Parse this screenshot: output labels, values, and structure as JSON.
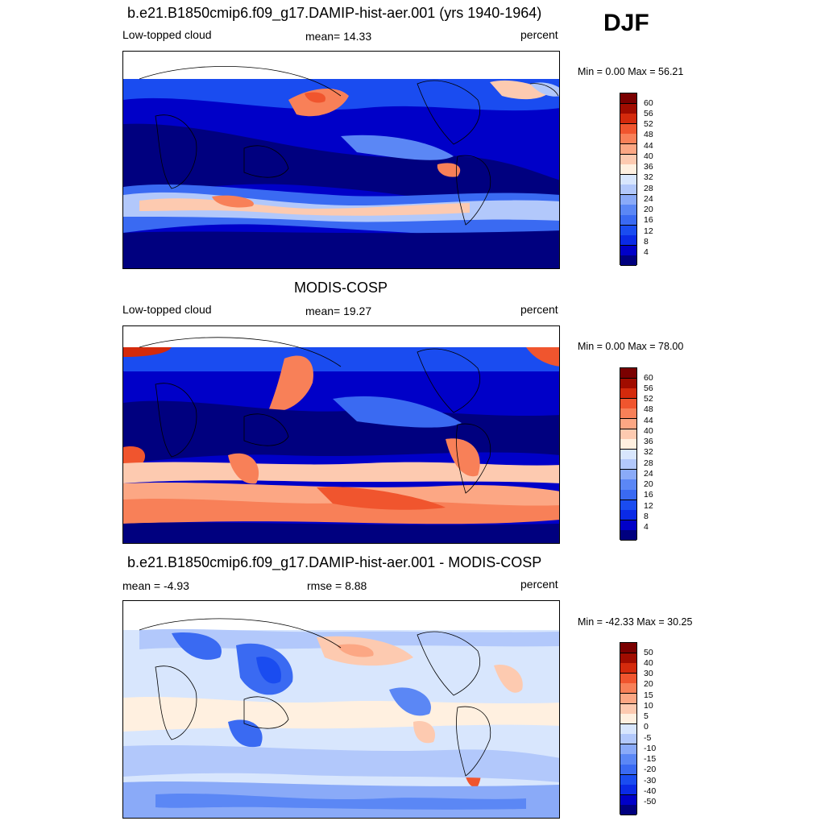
{
  "season": "DJF",
  "panels": [
    {
      "id": "model",
      "title": "b.e21.B1850cmip6.f09_g17.DAMIP-hist-aer.001 (yrs 1940-1964)",
      "left_label": "Low-topped cloud",
      "center_label": "mean=  14.33",
      "right_label": "percent",
      "minmax": "Min =   0.00 Max =  56.21",
      "colorbar_labels": [
        "60",
        "56",
        "52",
        "48",
        "44",
        "40",
        "36",
        "32",
        "28",
        "24",
        "20",
        "16",
        "12",
        "8",
        "4"
      ]
    },
    {
      "id": "obs",
      "title": "MODIS-COSP",
      "left_label": "Low-topped cloud",
      "center_label": "mean=  19.27",
      "right_label": "percent",
      "minmax": "Min =   0.00 Max =  78.00",
      "colorbar_labels": [
        "60",
        "56",
        "52",
        "48",
        "44",
        "40",
        "36",
        "32",
        "28",
        "24",
        "20",
        "16",
        "12",
        "8",
        "4"
      ]
    },
    {
      "id": "diff",
      "title": "b.e21.B1850cmip6.f09_g17.DAMIP-hist-aer.001 - MODIS-COSP",
      "left_label": "mean =  -4.93",
      "center_label": "rmse =   8.88",
      "right_label": "percent",
      "minmax": "Min = -42.33 Max =  30.25",
      "colorbar_labels": [
        "50",
        "40",
        "30",
        "20",
        "15",
        "10",
        "5",
        "0",
        "-5",
        "-10",
        "-15",
        "-20",
        "-30",
        "-40",
        "-50"
      ]
    }
  ],
  "colors": {
    "abs_scale": [
      "#00007f",
      "#0000c8",
      "#0a2ae6",
      "#1a4cf0",
      "#3a6af2",
      "#5b87f5",
      "#8aaaf8",
      "#b2c8fb",
      "#d8e6fd",
      "#fff0e0",
      "#fdcab0",
      "#fca784",
      "#f88058",
      "#f0552e",
      "#d42a0c",
      "#a00c00",
      "#7a0000"
    ],
    "diff_scale": [
      "#00007f",
      "#0000c8",
      "#0a2ae6",
      "#1a4cf0",
      "#3a6af2",
      "#5b87f5",
      "#8aaaf8",
      "#b2c8fb",
      "#d8e6fd",
      "#fff0e0",
      "#fdcab0",
      "#fca784",
      "#f88058",
      "#f0552e",
      "#d42a0c",
      "#a00c00",
      "#7a0000"
    ]
  }
}
